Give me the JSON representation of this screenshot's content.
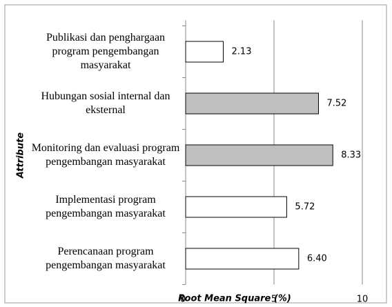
{
  "chart_data": {
    "type": "bar",
    "orientation": "horizontal",
    "categories": [
      "Publikasi dan penghargaan program pengembangan masyarakat",
      "Hubungan sosial internal dan eksternal",
      "Monitoring dan evaluasi program  pengembangan masyarakat",
      "Implementasi program pengembangan masyarakat",
      "Perencanaan program pengembangan masyarakat"
    ],
    "values": [
      2.13,
      7.52,
      8.33,
      5.72,
      6.4
    ],
    "value_labels": [
      "2.13",
      "7.52",
      "8.33",
      "5.72",
      "6.40"
    ],
    "colors": [
      "#ffffff",
      "#bfbfbf",
      "#bfbfbf",
      "#ffffff",
      "#ffffff"
    ],
    "xlabel": "Root Mean Square (%)",
    "ylabel": "Attribute",
    "xlim": [
      0,
      10
    ],
    "xticks": [
      0,
      5,
      10
    ],
    "grid": true
  }
}
